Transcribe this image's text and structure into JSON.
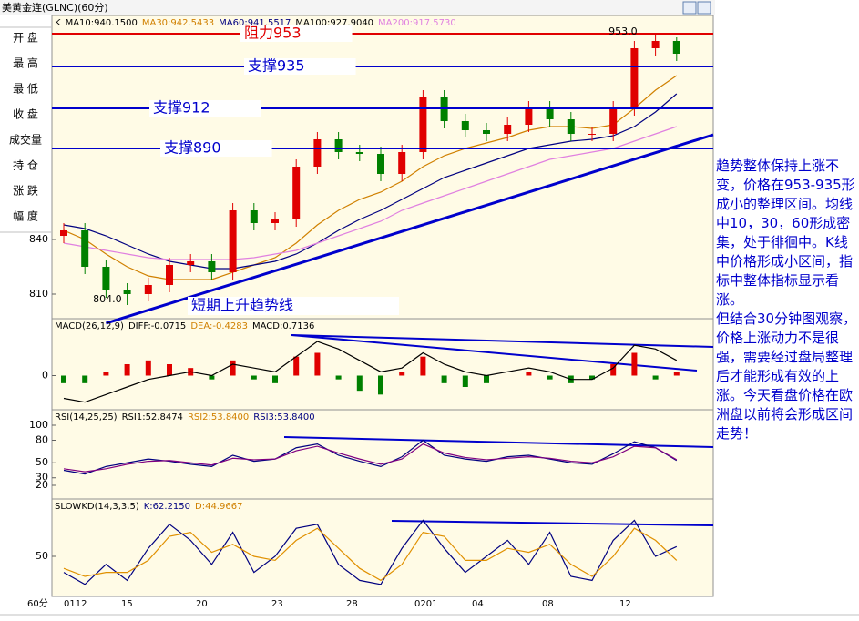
{
  "title": "美黄金连(GLNC)(60分)",
  "quote_labels": [
    "开 盘",
    "最 高",
    "最 低",
    "收 盘",
    "成交量",
    "持 仓",
    "涨 跌",
    "幅 度"
  ],
  "commentary": [
    "趋势整体保持上涨不变，价格在953-935形成小的整理区间。均线中10，30，60形成密集，处于徘徊中。K线中价格形成小区间，指标中整体指标显示看涨。",
    "但结合30分钟图观察，价格上涨动力不是很强，需要经过盘局整理后才能形成有效的上涨。今天看盘价格在欧洲盘以前将会形成区间走势！"
  ],
  "x_axis": {
    "unit": "60分",
    "labels": [
      "0112",
      "15",
      "20",
      "23",
      "28",
      "0201",
      "04",
      "08",
      "12"
    ]
  },
  "chart_data": [
    {
      "type": "candlestick",
      "legend_items": [
        {
          "text": "K",
          "color": "#000000"
        },
        {
          "text": "MA10:940.1500",
          "color": "#000000"
        },
        {
          "text": "MA30:942.5433",
          "color": "#d08000"
        },
        {
          "text": "MA60:941.5517",
          "color": "#000080"
        },
        {
          "text": "MA100:927.9040",
          "color": "#000000"
        },
        {
          "text": "MA200:917.5730",
          "color": "#e080e0"
        }
      ],
      "open": [
        842,
        845,
        825,
        812,
        810,
        815,
        826,
        828,
        822,
        856,
        849,
        851,
        880,
        895,
        888,
        887,
        876,
        888,
        918,
        905,
        900,
        898,
        903,
        912,
        906,
        898,
        898,
        912,
        945,
        949
      ],
      "high": [
        849,
        849,
        829,
        816,
        819,
        830,
        832,
        832,
        860,
        860,
        855,
        884,
        899,
        899,
        892,
        891,
        892,
        922,
        922,
        909,
        904,
        907,
        916,
        916,
        910,
        902,
        916,
        949,
        953,
        951
      ],
      "low": [
        838,
        821,
        808,
        804,
        806,
        811,
        822,
        818,
        818,
        845,
        845,
        847,
        876,
        884,
        883,
        872,
        872,
        884,
        901,
        896,
        894,
        894,
        899,
        902,
        894,
        894,
        894,
        908,
        941,
        938
      ],
      "close": [
        845,
        825,
        812,
        810,
        815,
        826,
        828,
        822,
        856,
        849,
        851,
        880,
        895,
        888,
        887,
        876,
        888,
        918,
        905,
        900,
        898,
        903,
        912,
        906,
        898,
        898,
        912,
        945,
        949,
        942
      ],
      "up_color": "#e00000",
      "down_color": "#008000",
      "lines": [
        {
          "color": "#d08000",
          "values": [
            845,
            840,
            832,
            825,
            820,
            818,
            818,
            818,
            822,
            826,
            830,
            838,
            848,
            856,
            862,
            866,
            872,
            880,
            886,
            890,
            893,
            896,
            900,
            902,
            902,
            901,
            903,
            912,
            922,
            930
          ]
        },
        {
          "color": "#000080",
          "values": [
            848,
            846,
            842,
            837,
            832,
            828,
            826,
            824,
            824,
            826,
            828,
            832,
            838,
            845,
            851,
            856,
            862,
            868,
            874,
            878,
            882,
            886,
            890,
            892,
            894,
            895,
            897,
            902,
            910,
            920
          ]
        },
        {
          "color": "#e080e0",
          "values": [
            838,
            836,
            834,
            832,
            830,
            829,
            829,
            829,
            829,
            830,
            832,
            834,
            838,
            842,
            846,
            850,
            856,
            860,
            864,
            868,
            872,
            876,
            880,
            884,
            886,
            888,
            890,
            894,
            898,
            902
          ]
        }
      ],
      "levels": [
        {
          "label": "阻力953",
          "value": 953,
          "color": "#e00000"
        },
        {
          "label": "支撑935",
          "value": 935,
          "color": "#0000cc"
        },
        {
          "label": "支撑912",
          "value": 912,
          "color": "#0000cc"
        },
        {
          "label": "支撑890",
          "value": 890,
          "color": "#0000cc"
        }
      ],
      "trendline": {
        "label": "短期上升趋势线",
        "from": [
          2,
          794
        ],
        "to": [
          31,
          897.5
        ],
        "color": "#0000cc"
      },
      "extreme_labels": [
        "953.0",
        "804.0"
      ],
      "ylim": [
        796.5,
        963
      ],
      "yticks": [
        810,
        840
      ]
    },
    {
      "type": "macd",
      "legend_items": [
        {
          "text": "MACD(26,12,9)",
          "color": "#000000"
        },
        {
          "text": "DIFF:-0.0715",
          "color": "#000000"
        },
        {
          "text": "DEA:-0.4283",
          "color": "#d08000"
        },
        {
          "text": "MACD:0.7136",
          "color": "#000000"
        }
      ],
      "values": [
        -2,
        -2,
        1,
        3,
        4,
        3,
        2,
        -1,
        4,
        -1,
        -2,
        5,
        6,
        -1,
        -4,
        -5,
        1,
        5,
        -2,
        -3,
        -2,
        0,
        1,
        -1,
        -2,
        -1,
        3,
        6,
        -1,
        1
      ],
      "pos_color": "#e00000",
      "neg_color": "#008000",
      "lines": [
        {
          "color": "#000000",
          "values": [
            -6,
            -7,
            -5,
            -3,
            -1,
            0,
            1,
            0,
            3,
            2,
            1,
            5,
            9,
            7,
            4,
            1,
            2,
            6,
            3,
            1,
            0,
            1,
            2,
            1,
            -1,
            -1,
            2,
            8,
            7,
            4
          ]
        }
      ],
      "ylim": [
        -9,
        15
      ],
      "yticks": [
        0
      ]
    },
    {
      "type": "line",
      "legend_items": [
        {
          "text": "RSI(14,25,25)",
          "color": "#000000"
        },
        {
          "text": "RSI1:52.8474",
          "color": "#000000"
        },
        {
          "text": "RSI2:53.8400",
          "color": "#d08000"
        },
        {
          "text": "RSI3:53.8400",
          "color": "#000080"
        }
      ],
      "series": [
        {
          "color": "#000080",
          "values": [
            40,
            35,
            45,
            50,
            55,
            52,
            48,
            45,
            60,
            52,
            55,
            70,
            75,
            60,
            52,
            45,
            58,
            80,
            60,
            55,
            52,
            58,
            60,
            55,
            50,
            48,
            62,
            78,
            70,
            53
          ]
        },
        {
          "color": "#800080",
          "values": [
            42,
            38,
            42,
            48,
            52,
            53,
            50,
            47,
            56,
            54,
            55,
            66,
            72,
            63,
            55,
            48,
            55,
            75,
            63,
            57,
            54,
            56,
            58,
            56,
            52,
            50,
            58,
            72,
            70,
            54
          ]
        }
      ],
      "ylim": [
        1.8,
        120.6
      ],
      "yticks": [
        20,
        30,
        50,
        80,
        100
      ]
    },
    {
      "type": "line",
      "legend_items": [
        {
          "text": "SLOWKD(14,3,3,5)",
          "color": "#000000"
        },
        {
          "text": "K:62.2150",
          "color": "#000080"
        },
        {
          "text": "D:44.9667",
          "color": "#d08000"
        }
      ],
      "series": [
        {
          "color": "#000080",
          "values": [
            30,
            15,
            40,
            20,
            60,
            90,
            70,
            40,
            80,
            30,
            50,
            85,
            90,
            40,
            20,
            15,
            60,
            95,
            60,
            30,
            50,
            70,
            40,
            80,
            25,
            20,
            70,
            95,
            50,
            62.2
          ]
        },
        {
          "color": "#e09000",
          "values": [
            35,
            25,
            30,
            30,
            45,
            75,
            80,
            55,
            65,
            50,
            45,
            70,
            85,
            60,
            35,
            20,
            40,
            80,
            75,
            45,
            45,
            60,
            55,
            65,
            40,
            25,
            50,
            85,
            70,
            45
          ]
        }
      ],
      "ylim": [
        0,
        121.6
      ],
      "yticks": [
        50
      ]
    }
  ]
}
